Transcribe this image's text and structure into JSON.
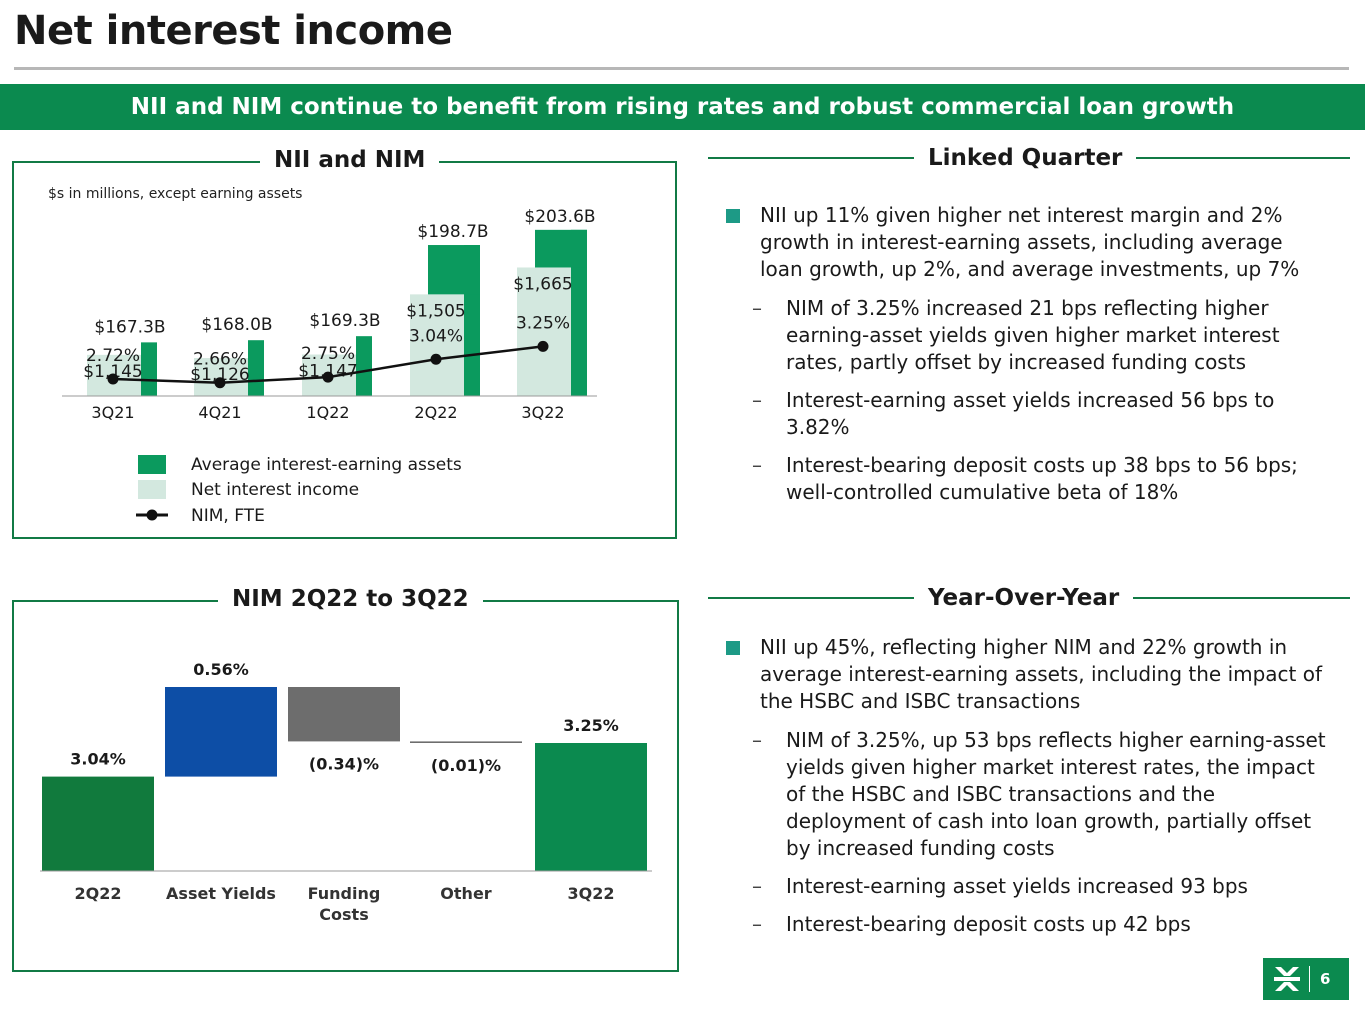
{
  "page": {
    "title": "Net interest income",
    "banner": "NII and NIM continue to benefit from rising rates and robust commercial loan growth",
    "page_number": "6"
  },
  "colors": {
    "brand_green": "#0b8a4f",
    "border_green": "#117a45",
    "assets_bar": "#0b9a5e",
    "nii_bar": "#d3e8df",
    "waterfall_start": "#117a3d",
    "waterfall_asset": "#0d4ea6",
    "waterfall_funding": "#6d6d6d",
    "waterfall_end": "#0b8a4f"
  },
  "sections": {
    "nii_nim_title": "NII and NIM",
    "waterfall_title": "NIM 2Q22 to 3Q22",
    "linked_title": "Linked Quarter",
    "yoy_title": "Year-Over-Year"
  },
  "linked_quarter": {
    "main": "NII up 11% given higher net interest margin and 2% growth in interest-earning assets, including average loan growth, up 2%, and average investments, up 7%",
    "subs": [
      "NIM of 3.25% increased 21 bps reflecting higher earning-asset yields given higher market interest rates, partly offset by increased funding costs",
      "Interest-earning asset yields increased 56 bps to 3.82%",
      "Interest-bearing deposit costs up 38 bps to 56 bps; well-controlled cumulative beta of 18%"
    ]
  },
  "year_over_year": {
    "main": "NII up 45%, reflecting higher NIM and 22% growth in average interest-earning assets, including the impact of the HSBC and ISBC transactions",
    "subs": [
      "NIM of 3.25%, up 53 bps reflects higher earning-asset yields given higher market interest rates, the impact of the HSBC and ISBC transactions and the deployment of cash into loan growth, partially offset by increased funding costs",
      "Interest-earning asset yields increased 93 bps",
      "Interest-bearing deposit costs up 42 bps"
    ]
  },
  "chart_data": [
    {
      "type": "bar",
      "title": "NII and NIM",
      "note": "$s in millions, except earning assets",
      "categories": [
        "3Q21",
        "4Q21",
        "1Q22",
        "2Q22",
        "3Q22"
      ],
      "series": [
        {
          "name": "Average interest-earning assets",
          "values": [
            167.3,
            168.0,
            169.3,
            198.7,
            203.6
          ],
          "labels": [
            "$167.3B",
            "$168.0B",
            "$169.3B",
            "$198.7B",
            "$203.6B"
          ]
        },
        {
          "name": "Net interest income",
          "values": [
            1145,
            1126,
            1147,
            1505,
            1665
          ],
          "labels": [
            "$1,145",
            "$1,126",
            "$1,147",
            "$1,505",
            "$1,665"
          ]
        },
        {
          "name": "NIM, FTE",
          "type": "line",
          "values": [
            2.72,
            2.66,
            2.75,
            3.04,
            3.25
          ],
          "labels": [
            "2.72%",
            "2.66%",
            "2.75%",
            "3.04%",
            "3.25%"
          ]
        }
      ],
      "legend": [
        "Average interest-earning assets",
        "Net interest income",
        "NIM, FTE"
      ]
    },
    {
      "type": "bar",
      "subtype": "waterfall",
      "title": "NIM 2Q22 to 3Q22",
      "categories": [
        "2Q22",
        "Asset Yields",
        "Funding Costs",
        "Other",
        "3Q22"
      ],
      "values": [
        3.04,
        0.56,
        -0.34,
        -0.01,
        3.25
      ],
      "labels": [
        "3.04%",
        "0.56%",
        "(0.34)%",
        "(0.01)%",
        "3.25%"
      ]
    }
  ]
}
